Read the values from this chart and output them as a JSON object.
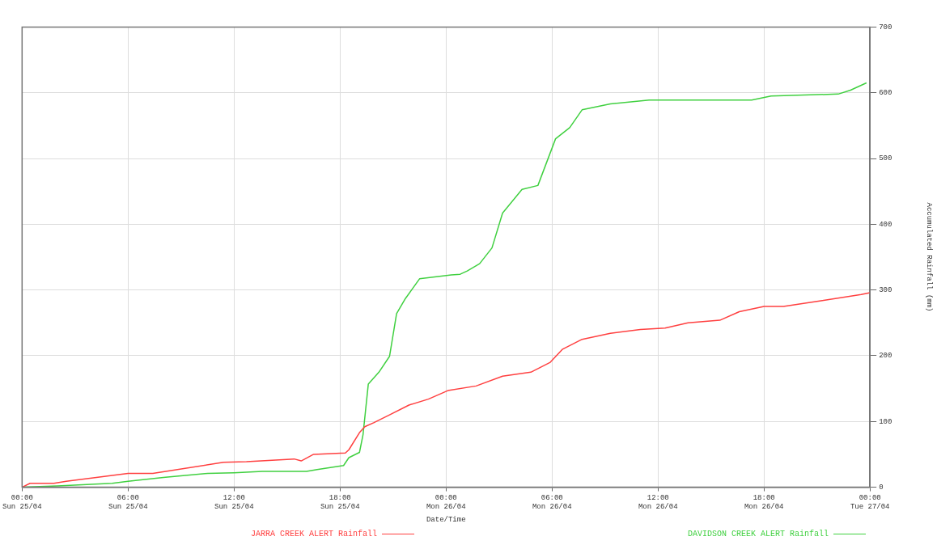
{
  "chart_data": {
    "type": "line",
    "xlabel": "Date/Time",
    "ylabel": "Accumulated Rainfall (mm)",
    "xlim": [
      "--04-25T00:00",
      "--04-27T00:00"
    ],
    "xticks": [
      {
        "value": "--04-25T00:00",
        "label": "00:00\nSun 25/04"
      },
      {
        "value": "--04-25T06:00",
        "label": "06:00\nSun 25/04"
      },
      {
        "value": "--04-25T12:00",
        "label": "12:00\nSun 25/04"
      },
      {
        "value": "--04-25T18:00",
        "label": "18:00\nSun 25/04"
      },
      {
        "value": "--04-26T00:00",
        "label": "00:00\nMon 26/04"
      },
      {
        "value": "--04-26T06:00",
        "label": "06:00\nMon 26/04"
      },
      {
        "value": "--04-26T12:00",
        "label": "12:00\nMon 26/04"
      },
      {
        "value": "--04-26T18:00",
        "label": "18:00\nMon 26/04"
      },
      {
        "value": "--04-27T00:00",
        "label": "00:00\nTue 27/04"
      }
    ],
    "ylim": [
      0,
      700
    ],
    "yticks": [
      0,
      100,
      200,
      300,
      400,
      500,
      600,
      700
    ],
    "grid": true,
    "legend": "bottom",
    "marker": "none",
    "series": [
      {
        "name": "JARRA CREEK ALERT Rainfall",
        "color": "#ff4040",
        "x": [
          "--04-25T00:00",
          "--04-25T00:27",
          "--04-25T01:48",
          "--04-25T02:30",
          "--04-25T06:00",
          "--04-25T07:24",
          "--04-25T11:24",
          "--04-25T12:42",
          "--04-25T15:24",
          "--04-25T15:48",
          "--04-25T16:30",
          "--04-25T18:18",
          "--04-25T18:30",
          "--04-25T19:06",
          "--04-25T19:24",
          "--04-25T19:54",
          "--04-25T20:48",
          "--04-25T21:54",
          "--04-25T23:00",
          "--04-26T00:06",
          "--04-26T01:42",
          "--04-26T03:12",
          "--04-26T04:48",
          "--04-26T05:54",
          "--04-26T06:36",
          "--04-26T07:42",
          "--04-26T09:18",
          "--04-26T11:00",
          "--04-26T12:24",
          "--04-26T13:42",
          "--04-26T15:30",
          "--04-26T16:36",
          "--04-26T18:00",
          "--04-26T19:06",
          "--04-26T21:18",
          "--04-26T23:30",
          "--04-27T00:00"
        ],
        "values": [
          0,
          6,
          6,
          9,
          21,
          21,
          38,
          39,
          43,
          40,
          50,
          52,
          57,
          83,
          92,
          98,
          110,
          125,
          134,
          147,
          154,
          169,
          175,
          190,
          210,
          225,
          234,
          240,
          242,
          250,
          254,
          267,
          275,
          275,
          284,
          293,
          296
        ]
      },
      {
        "name": "DAVIDSON CREEK ALERT Rainfall",
        "color": "#40d040",
        "x": [
          "--04-25T00:00",
          "--04-25T02:00",
          "--04-25T05:06",
          "--04-25T06:00",
          "--04-25T08:00",
          "--04-25T10:30",
          "--04-25T12:00",
          "--04-25T13:36",
          "--04-25T16:06",
          "--04-25T16:42",
          "--04-25T18:12",
          "--04-25T18:30",
          "--04-25T19:06",
          "--04-25T19:18",
          "--04-25T19:36",
          "--04-25T20:12",
          "--04-25T20:48",
          "--04-25T21:12",
          "--04-25T21:42",
          "--04-25T22:30",
          "--04-26T00:18",
          "--04-26T00:48",
          "--04-26T01:12",
          "--04-26T01:54",
          "--04-26T02:36",
          "--04-26T03:12",
          "--04-26T04:18",
          "--04-26T05:12",
          "--04-26T06:12",
          "--04-26T07:00",
          "--04-26T07:42",
          "--04-26T09:18",
          "--04-26T11:30",
          "--04-26T17:18",
          "--04-26T18:24",
          "--04-26T22:12",
          "--04-26T22:54",
          "--04-26T23:48"
        ],
        "values": [
          0,
          2,
          6,
          9,
          15,
          21,
          22,
          24,
          24,
          27,
          33,
          45,
          53,
          80,
          157,
          175,
          199,
          264,
          287,
          317,
          323,
          324,
          329,
          340,
          364,
          417,
          453,
          459,
          530,
          547,
          574,
          583,
          589,
          589,
          595,
          598,
          604,
          615
        ]
      }
    ]
  }
}
